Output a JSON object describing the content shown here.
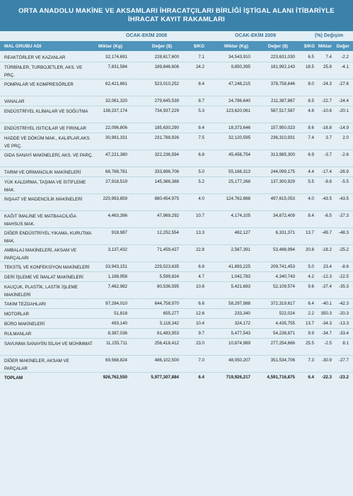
{
  "title": {
    "line1": "ORTA ANADOLU MAKİNE VE AKSAMLARI İHRACATÇILARI BİRLİĞİ İŞTİGAL ALANI İTİBARİYLE",
    "line2": "İHRACAT KAYIT RAKAMLARI"
  },
  "groups": {
    "period_2008": "OCAK-EKİM 2008",
    "period_2009": "OCAK-EKİM 2009",
    "change": "(%) Değişim"
  },
  "headers": {
    "name": "MAL GRUBU ADI",
    "qty_2008": "Miktar (Kg)",
    "val_2008": "Değer ($)",
    "skg_2008": "$/KG",
    "qty_2009": "Miktar (Kg)",
    "val_2009": "Değer ($)",
    "skg_2009": "$/KG",
    "chg_qty": "Miktar",
    "chg_val": "Değer"
  },
  "rows": [
    {
      "name": "REAKTÖRLER VE KAZANLAR",
      "q08": "32,174,691",
      "v08": "228,617,600",
      "s08": "7.1",
      "q09": "34,543,910",
      "v09": "223,631,030",
      "s09": "6.5",
      "cq": "7.4",
      "cv": "-2.2"
    },
    {
      "name": "TÜRBİNLER, TURBOJETLER, AKS. VE PRÇ.",
      "q08": "7,831,584",
      "v08": "189,846,606",
      "s08": "24.2",
      "q09": "9,850,395",
      "v09": "181,992,143",
      "s09": "18.5",
      "cq": "25.8",
      "cv": "-4.1"
    },
    {
      "name": "POMPALAR VE KOMPRESÖRLER",
      "q08": "62,421,661",
      "v08": "523,010,252",
      "s08": "8.4",
      "q09": "47,248,215",
      "v09": "378,758,646",
      "s09": "8.0",
      "cq": "-24.3",
      "cv": "-27.6"
    },
    {
      "name": "VANALAR",
      "q08": "32,061,320",
      "v08": "279,645,539",
      "s08": "8.7",
      "q09": "24,786,640",
      "v09": "211,387,867",
      "s09": "8.5",
      "cq": "-22.7",
      "cv": "-24.4"
    },
    {
      "name": "ENDÜSTRİYEL KLİMALAR VE SOĞUTMA",
      "q08": "138,237,174",
      "v08": "734,937,229",
      "s08": "5.3",
      "q09": "123,620,061",
      "v09": "587,517,587",
      "s09": "4.8",
      "cq": "-10.6",
      "cv": "-20.1"
    },
    {
      "name": "ENDÜSTRİYEL ISITICILAR VE FIRINLAR",
      "q08": "22,096,806",
      "v08": "185,630,290",
      "s08": "8.4",
      "q09": "18,373,646",
      "v09": "157,950,023",
      "s09": "8.6",
      "cq": "-16.8",
      "cv": "-14.9"
    },
    {
      "name": "HADDE VE DÖKÜM MAK., KALIPLAR,AKS. VE PRÇ.",
      "q08": "30,981,331",
      "v08": "231,788,926",
      "s08": "7.5",
      "q09": "32,120,595",
      "v09": "236,310,931",
      "s09": "7.4",
      "cq": "3.7",
      "cv": "2.0"
    },
    {
      "name": "GIDA SANAYİ MAKİNELERİ, AKS. VE PARÇ.",
      "q08": "47,221,380",
      "v08": "322,236,594",
      "s08": "6.8",
      "q09": "45,456,754",
      "v09": "313,985,300",
      "s09": "6.9",
      "cq": "-3.7",
      "cv": "-2.6"
    },
    {
      "name": "TARIM VE ORMANCILIK MAKİNELERİ",
      "q08": "66,768,781",
      "v08": "333,896,706",
      "s08": "5.0",
      "q09": "55,166,313",
      "v09": "244,099,175",
      "s09": "4.4",
      "cq": "-17.4",
      "cv": "-26.9"
    },
    {
      "name": "YÜK KALDIRMA, TAŞIMA VE İSTİFLEME MAK.",
      "q08": "27,918,519",
      "v08": "145,366,388",
      "s08": "5.2",
      "q09": "25,177,268",
      "v09": "137,300,929",
      "s09": "5.5",
      "cq": "-9.8",
      "cv": "-5.5"
    },
    {
      "name": "İNŞAAT VE MADENCİLİK MAKİNELERİ",
      "q08": "220,993,859",
      "v08": "880,454,975",
      "s08": "4.0",
      "q09": "124,762,868",
      "v09": "497,615,053",
      "s09": "4.0",
      "cq": "-43.5",
      "cv": "-43.5"
    },
    {
      "name": "KAĞIT İMALİNE VE MATBAACILIĞA MAHSUS MAK.",
      "q08": "4,463,396",
      "v08": "47,969,292",
      "s08": "10.7",
      "q09": "4,174,105",
      "v09": "34,872,409",
      "s09": "8.4",
      "cq": "-6.5",
      "cv": "-27.3"
    },
    {
      "name": "DİĞER ENDÜSTRİYEL YIKAMA, KURUTMA MAK.",
      "q08": "918,987",
      "v08": "12,252,554",
      "s08": "13.3",
      "q09": "462,127",
      "v09": "6,331,371",
      "s09": "13.7",
      "cq": "-49.7",
      "cv": "-48.3"
    },
    {
      "name": "AMBALAJ MAKİNELERİ, AKSAM VE PARÇALARI",
      "q08": "3,137,432",
      "v08": "71,459,427",
      "s08": "22.8",
      "q09": "2,567,391",
      "v09": "53,466,994",
      "s09": "20.8",
      "cq": "-18.2",
      "cv": "-25.2"
    },
    {
      "name": "TEKSTİL VE KONFEKSİYON MAKİNELERİ",
      "q08": "33,943,151",
      "v08": "229,523,635",
      "s08": "6.8",
      "q09": "41,893,225",
      "v09": "209,741,453",
      "s09": "5.0",
      "cq": "23.4",
      "cv": "-8.6"
    },
    {
      "name": "DERİ İŞLEME VE İMALAT MAKİNELERİ",
      "q08": "1,188,958",
      "v08": "5,599,824",
      "s08": "4.7",
      "q09": "1,042,783",
      "v09": "4,340,743",
      "s09": "4.2",
      "cq": "-12.3",
      "cv": "-22.5"
    },
    {
      "name": "KAUÇUK, PLASTİK, LASTİK İŞLEME MAKİNELERİ",
      "q08": "7,462,982",
      "v08": "80,536,595",
      "s08": "10.8",
      "q09": "5,421,683",
      "v09": "52,109,574",
      "s09": "9.6",
      "cq": "-27.4",
      "cv": "-35.3"
    },
    {
      "name": "TAKIM TEZGAHLARI",
      "q08": "97,284,010",
      "v08": "644,758,970",
      "s08": "6.6",
      "q09": "58,297,988",
      "v09": "372,319,617",
      "s09": "6.4",
      "cq": "-40.1",
      "cv": "-42.3"
    },
    {
      "name": "MOTORLAR",
      "q08": "51,818",
      "v08": "655,277",
      "s08": "12.6",
      "q09": "233,340",
      "v09": "522,024",
      "s09": "2.2",
      "cq": "350.3",
      "cv": "-20.3"
    },
    {
      "name": "BÜRO MAKİNELERİ",
      "q08": "493,140",
      "v08": "5,118,342",
      "s08": "10.4",
      "q09": "324,172",
      "v09": "4,435,755",
      "s09": "13.7",
      "cq": "-34.3",
      "cv": "-13.3"
    },
    {
      "name": "RULMANLAR",
      "q08": "8,387,036",
      "v08": "81,483,953",
      "s08": "9.7",
      "q09": "5,477,543",
      "v09": "54,238,871",
      "s09": "9.9",
      "cq": "-34.7",
      "cv": "-33.4"
    },
    {
      "name": "SAVUNMA SANAYİİN SİLAH VE MÜHİMMAT",
      "q08": "11,155,711",
      "v08": "256,418,412",
      "s08": "23.0",
      "q09": "10,874,989",
      "v09": "277,254,666",
      "s09": "25.5",
      "cq": "-2.5",
      "cv": "8.1"
    },
    {
      "name": "DİĞER MAKİNELER, AKSAM VE PARÇALAR",
      "q08": "69,568,824",
      "v08": "486,102,500",
      "s08": "7.0",
      "q09": "48,050,207",
      "v09": "351,534,706",
      "s09": "7.3",
      "cq": "-30.9",
      "cv": "-27.7"
    },
    {
      "name": "TOPLAM",
      "q08": "926,762,550",
      "v08": "5,977,307,884",
      "s08": "6.4",
      "q09": "719,926,217",
      "v09": "4,591,716,875",
      "s09": "6.4",
      "cq": "-22.3",
      "cv": "-23.2"
    }
  ]
}
